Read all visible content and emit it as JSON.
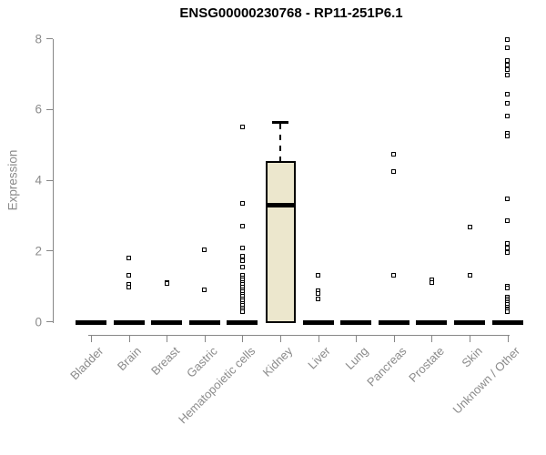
{
  "chart_data": {
    "type": "boxplot",
    "title": "ENSG00000230768 - RP11-251P6.1",
    "ylabel": "Expression",
    "xlabel": "",
    "ylim": [
      0,
      8
    ],
    "yticks": [
      0,
      2,
      4,
      6,
      8
    ],
    "grid": false,
    "legend": "none",
    "categories": [
      "Bladder",
      "Brain",
      "Breast",
      "Gastric",
      "Hematopoietic cells",
      "Kidney",
      "Liver",
      "Lung",
      "Pancreas",
      "Prostate",
      "Skin",
      "Unknown / Other"
    ],
    "series": [
      {
        "category": "Bladder",
        "q1": 0,
        "median": 0,
        "q3": 0,
        "whisker_low": 0,
        "whisker_high": 0,
        "outliers": []
      },
      {
        "category": "Brain",
        "q1": 0,
        "median": 0,
        "q3": 0,
        "whisker_low": 0,
        "whisker_high": 0,
        "outliers": [
          1.8,
          1.29,
          1.03,
          0.97
        ]
      },
      {
        "category": "Breast",
        "q1": 0,
        "median": 0,
        "q3": 0,
        "whisker_low": 0,
        "whisker_high": 0,
        "outliers": [
          1.1,
          1.07
        ]
      },
      {
        "category": "Gastric",
        "q1": 0,
        "median": 0,
        "q3": 0,
        "whisker_low": 0,
        "whisker_high": 0,
        "outliers": [
          2.01,
          0.9
        ]
      },
      {
        "category": "Hematopoietic cells",
        "q1": 0,
        "median": 0,
        "q3": 0,
        "whisker_low": 0,
        "whisker_high": 0,
        "outliers": [
          5.48,
          3.34,
          2.7,
          2.06,
          1.83,
          1.7,
          1.54,
          1.29,
          1.22,
          1.16,
          1.09,
          1.03,
          0.96,
          0.9,
          0.83,
          0.77,
          0.7,
          0.64,
          0.57,
          0.51,
          0.44,
          0.38,
          0.31,
          0.26
        ]
      },
      {
        "category": "Kidney",
        "q1": 0,
        "median": 3.29,
        "q3": 4.53,
        "whisker_low": 0,
        "whisker_high": 5.63,
        "outliers": []
      },
      {
        "category": "Liver",
        "q1": 0,
        "median": 0,
        "q3": 0,
        "whisker_low": 0,
        "whisker_high": 0,
        "outliers": [
          1.31,
          0.85,
          0.78,
          0.64
        ]
      },
      {
        "category": "Lung",
        "q1": 0,
        "median": 0,
        "q3": 0,
        "whisker_low": 0,
        "whisker_high": 0,
        "outliers": []
      },
      {
        "category": "Pancreas",
        "q1": 0,
        "median": 0,
        "q3": 0,
        "whisker_low": 0,
        "whisker_high": 0,
        "outliers": [
          4.73,
          4.24,
          1.31
        ]
      },
      {
        "category": "Prostate",
        "q1": 0,
        "median": 0,
        "q3": 0,
        "whisker_low": 0,
        "whisker_high": 0,
        "outliers": [
          1.16,
          1.1
        ]
      },
      {
        "category": "Skin",
        "q1": 0,
        "median": 0,
        "q3": 0,
        "whisker_low": 0,
        "whisker_high": 0,
        "outliers": [
          2.67,
          1.29
        ]
      },
      {
        "category": "Unknown / Other",
        "q1": 0,
        "median": 0,
        "q3": 0,
        "whisker_low": 0,
        "whisker_high": 0,
        "outliers": [
          7.97,
          7.72,
          7.36,
          7.23,
          7.1,
          6.95,
          6.41,
          6.15,
          5.81,
          5.3,
          5.24,
          3.45,
          2.83,
          2.19,
          2.08,
          1.95,
          1.0,
          0.95,
          0.67,
          0.62,
          0.57,
          0.52,
          0.47,
          0.41,
          0.36,
          0.31,
          0.26
        ]
      }
    ],
    "colors": {
      "box_fill": "#ece7cd",
      "marks": "#000000",
      "axis": "#878787",
      "tick_text": "#8b8b8b",
      "title_text": "#000000",
      "background": "#ffffff"
    }
  }
}
